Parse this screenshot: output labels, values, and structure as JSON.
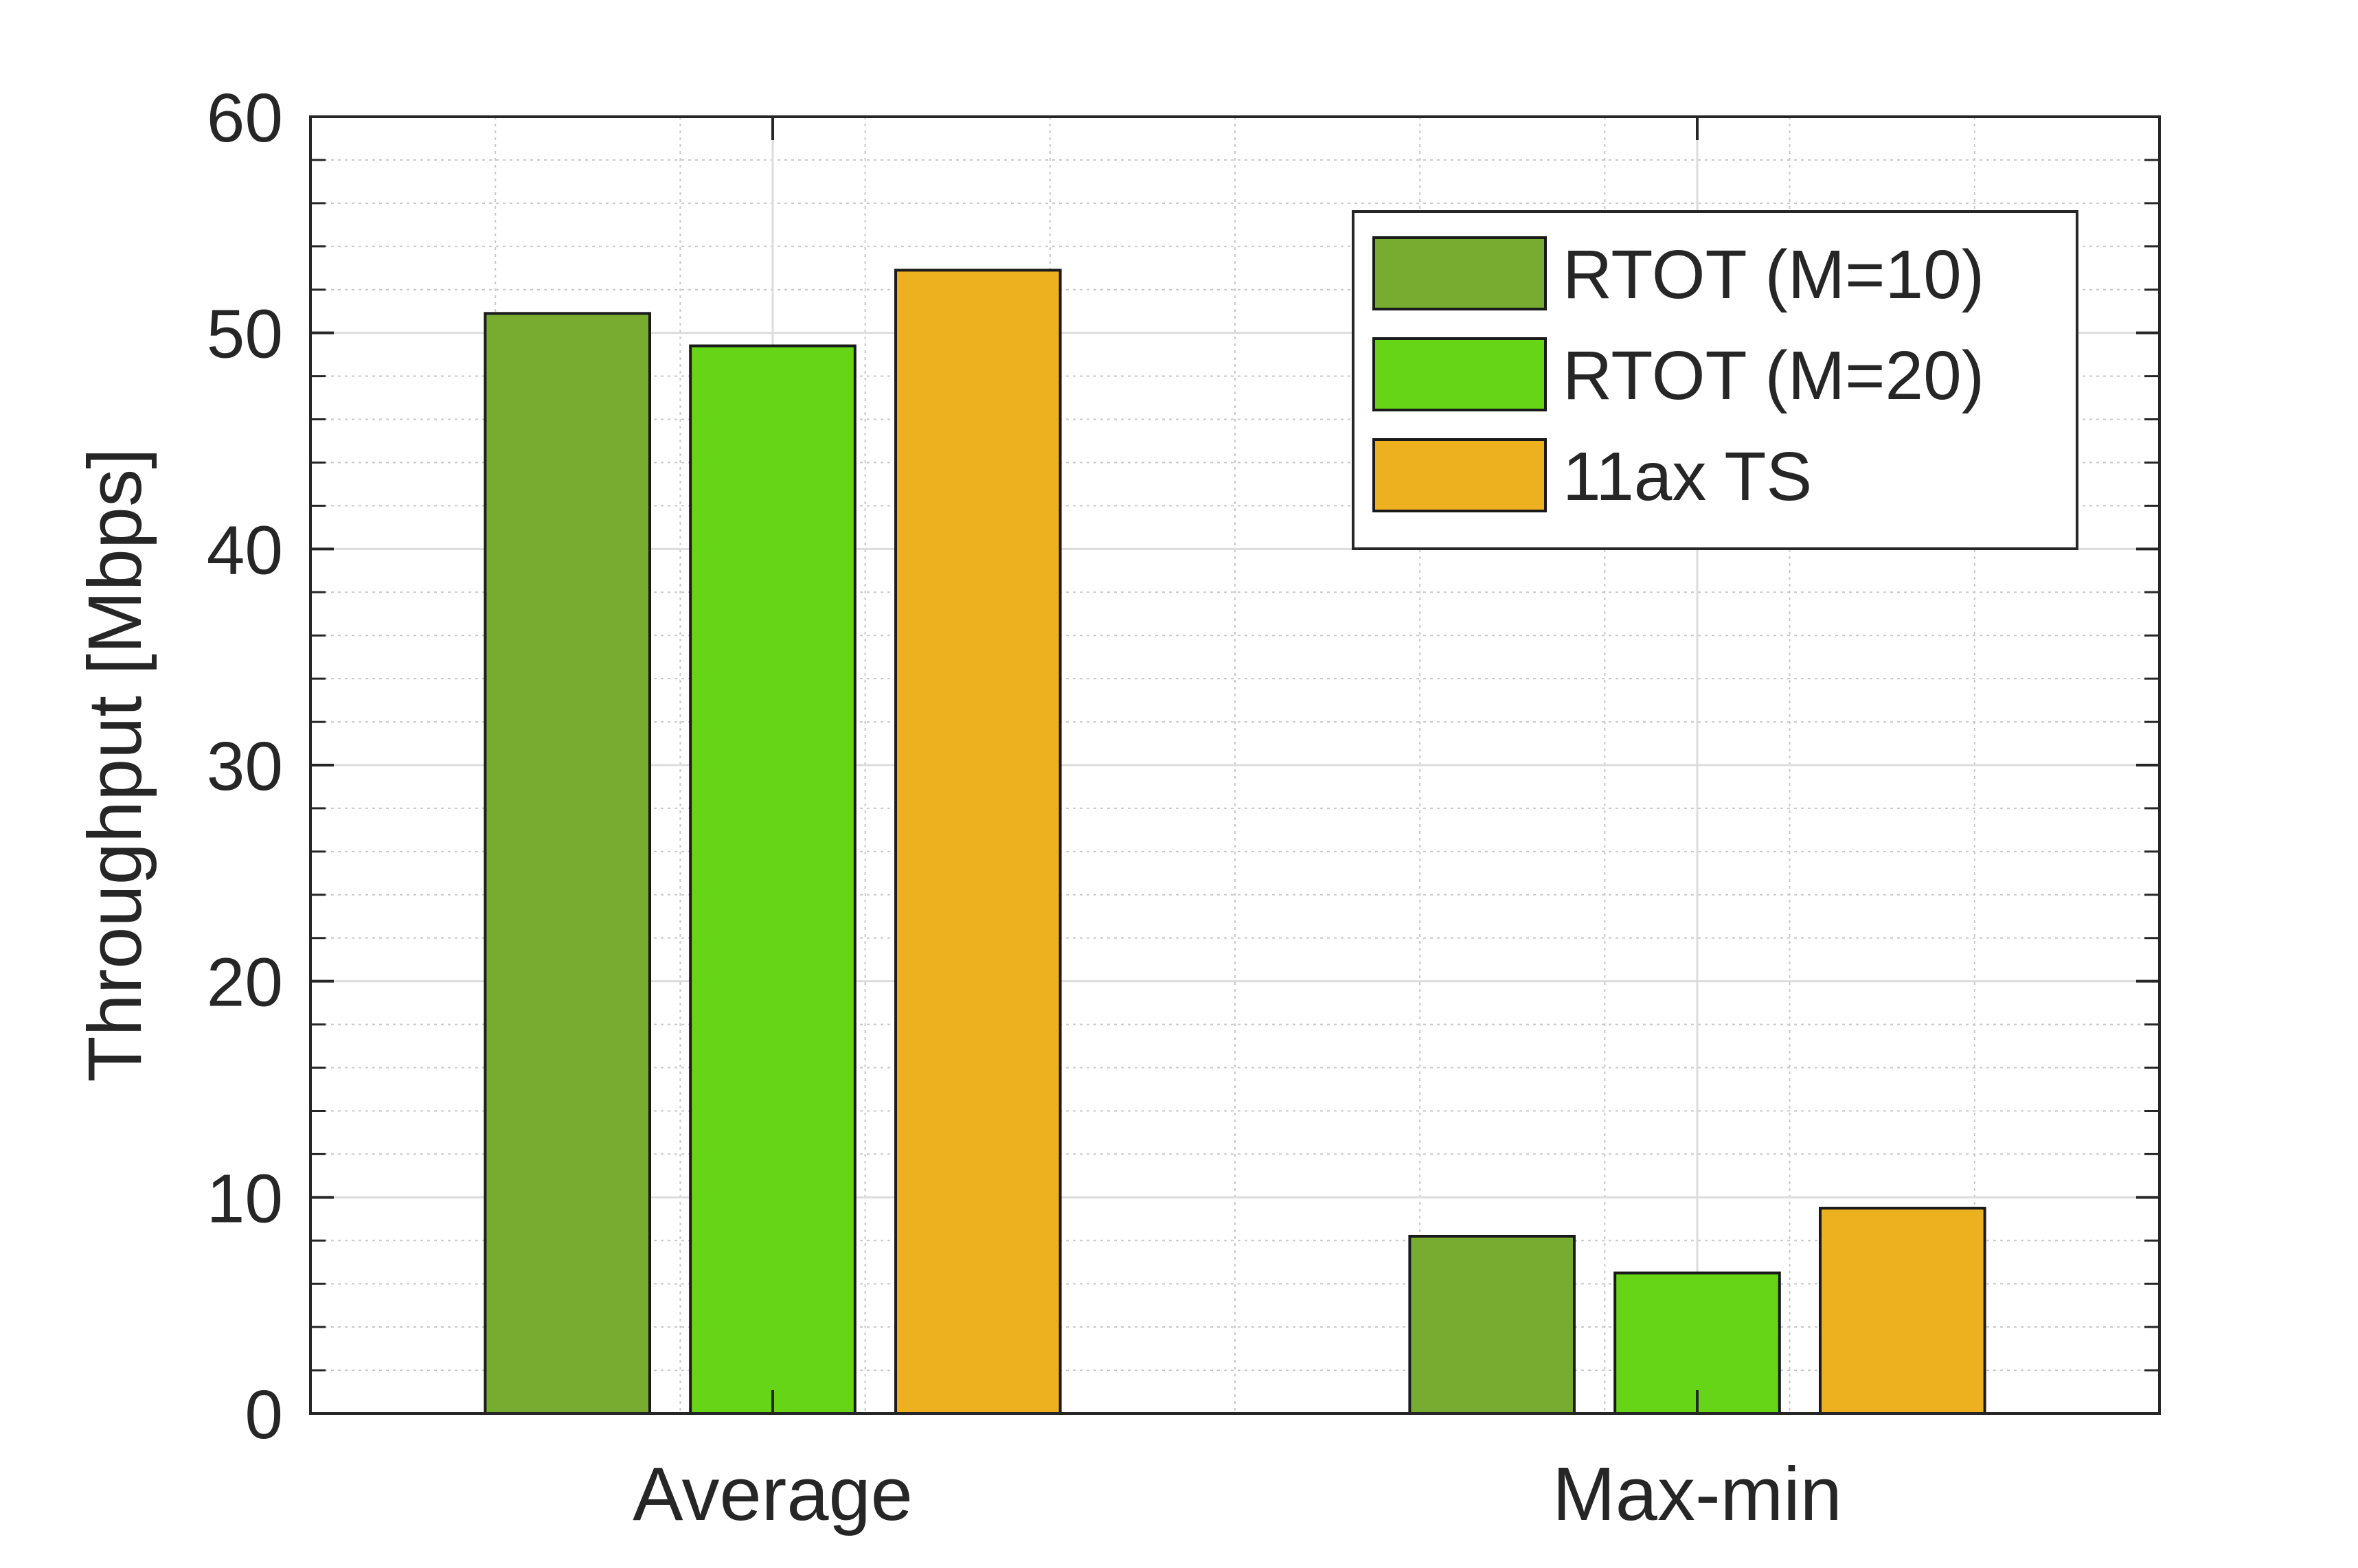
{
  "chart_data": {
    "type": "bar",
    "categories": [
      "Average",
      "Max-min"
    ],
    "series": [
      {
        "name": "RTOT (M=10)",
        "color": "#77AC30",
        "values": [
          50.9,
          8.2
        ]
      },
      {
        "name": "RTOT (M=20)",
        "color": "#66D515",
        "values": [
          49.4,
          6.5
        ]
      },
      {
        "name": "11ax TS",
        "color": "#EDB120",
        "values": [
          52.9,
          9.5
        ]
      }
    ],
    "xlabel": "",
    "ylabel": "Throughput [Mbps]",
    "ylim": [
      0,
      60
    ],
    "yticks": [
      "0",
      "10",
      "20",
      "30",
      "40",
      "50",
      "60"
    ],
    "grid": true,
    "minor_grid": true,
    "legend_position": "top-right"
  }
}
